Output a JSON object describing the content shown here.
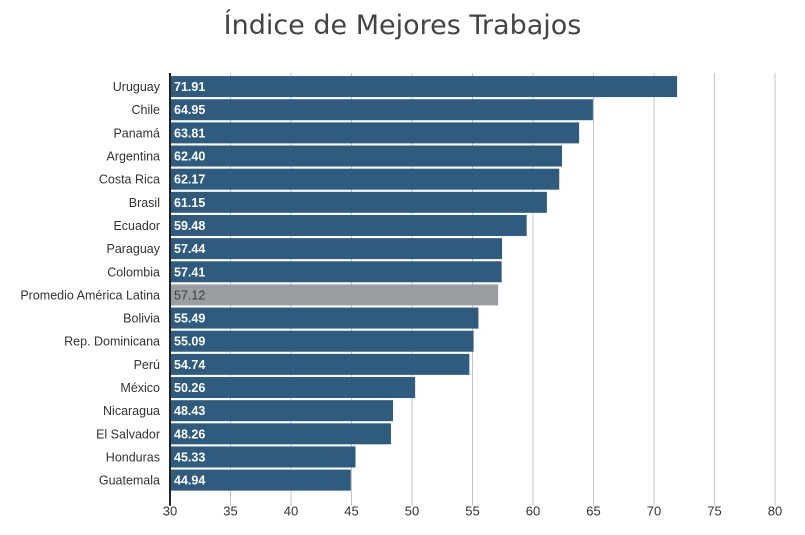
{
  "chart_data": {
    "type": "bar",
    "orientation": "horizontal",
    "title": "Índice de Mejores Trabajos",
    "xlabel": "",
    "ylabel": "",
    "xlim": [
      30,
      80
    ],
    "xticks": [
      30,
      35,
      40,
      45,
      50,
      55,
      60,
      65,
      70,
      75,
      80
    ],
    "grid": "vertical",
    "legend": "none",
    "categories": [
      "Uruguay",
      "Chile",
      "Panamá",
      "Argentina",
      "Costa Rica",
      "Brasil",
      "Ecuador",
      "Paraguay",
      "Colombia",
      "Promedio América Latina",
      "Bolivia",
      "Rep. Dominicana",
      "Perú",
      "México",
      "Nicaragua",
      "El Salvador",
      "Honduras",
      "Guatemala"
    ],
    "values": [
      71.91,
      64.95,
      63.81,
      62.4,
      62.17,
      61.15,
      59.48,
      57.44,
      57.41,
      57.12,
      55.49,
      55.09,
      54.74,
      50.26,
      48.43,
      48.26,
      45.33,
      44.94
    ],
    "value_labels": [
      "71.91",
      "64.95",
      "63.81",
      "62.40",
      "62.17",
      "61.15",
      "59.48",
      "57.44",
      "57.41",
      "57.12",
      "55.49",
      "55.09",
      "54.74",
      "50.26",
      "48.43",
      "48.26",
      "45.33",
      "44.94"
    ],
    "highlight_category": "Promedio América Latina",
    "colors": {
      "bar": "#2f5b7f",
      "highlight_bar": "#9a9ea3",
      "bar_label": "#ffffff",
      "highlight_label": "#3d3d3d",
      "grid": "#c4c4c4",
      "axis": "#222222",
      "text": "#333333"
    }
  }
}
